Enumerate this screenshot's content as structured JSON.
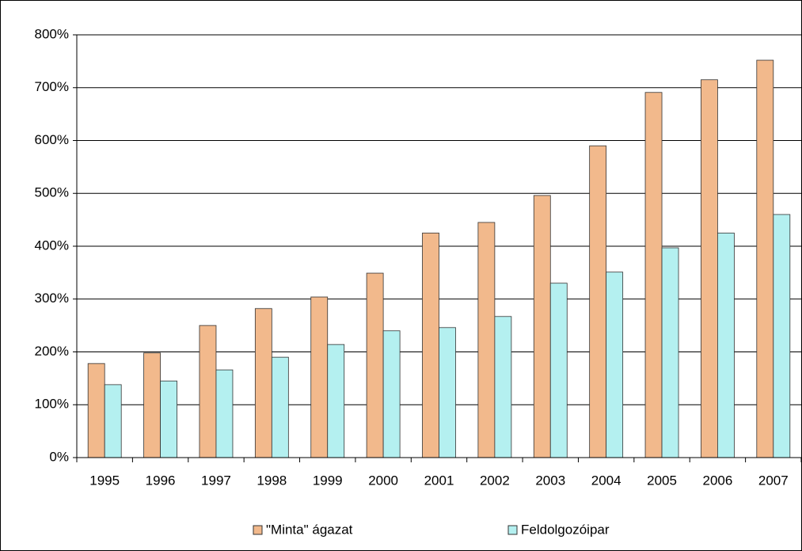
{
  "chart_data": {
    "type": "bar",
    "categories": [
      "1995",
      "1996",
      "1997",
      "1998",
      "1999",
      "2000",
      "2001",
      "2002",
      "2003",
      "2004",
      "2005",
      "2006",
      "2007"
    ],
    "series": [
      {
        "name": "\"Minta\" ágazat",
        "color": "#f2b98c",
        "values": [
          178,
          198,
          250,
          282,
          304,
          349,
          425,
          445,
          496,
          590,
          691,
          715,
          752
        ]
      },
      {
        "name": "Feldolgozóipar",
        "color": "#b4f0f0",
        "values": [
          138,
          145,
          166,
          190,
          214,
          240,
          246,
          267,
          330,
          351,
          397,
          425,
          460
        ]
      }
    ],
    "ylim": [
      0,
      800
    ],
    "yticks": [
      {
        "value": 0,
        "label": "0%"
      },
      {
        "value": 100,
        "label": "100%"
      },
      {
        "value": 200,
        "label": "200%"
      },
      {
        "value": 300,
        "label": "300%"
      },
      {
        "value": 400,
        "label": "400%"
      },
      {
        "value": 500,
        "label": "500%"
      },
      {
        "value": 600,
        "label": "600%"
      },
      {
        "value": 700,
        "label": "700%"
      },
      {
        "value": 800,
        "label": "800%"
      }
    ],
    "grid": true,
    "legend": "bottom"
  }
}
